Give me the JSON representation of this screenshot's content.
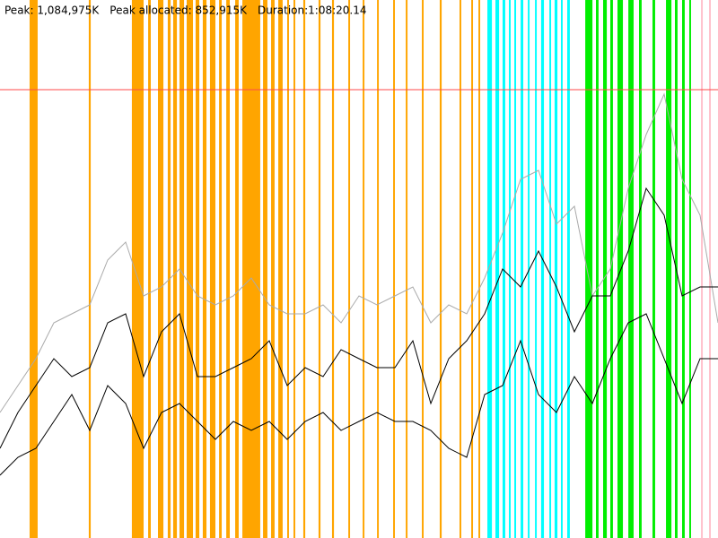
{
  "chart_data": {
    "type": "line",
    "labels": [
      "Peak: 1,084,975K",
      "Peak allocated: 852,915K",
      "Duration:1:08:20.14"
    ],
    "peak_line": {
      "value": 1084975,
      "color": "#ff4a4a"
    },
    "xlim": [
      0,
      4100
    ],
    "ylim": [
      0,
      1301970
    ],
    "x": [
      0,
      102.5,
      205,
      307.5,
      410,
      512.5,
      615,
      717.5,
      820,
      922.5,
      1025,
      1127.5,
      1230,
      1332.5,
      1435,
      1537.5,
      1640,
      1742.5,
      1845,
      1947.5,
      2050,
      2152.5,
      2255,
      2357.5,
      2460,
      2562.5,
      2665,
      2767.5,
      2870,
      2972.5,
      3075,
      3177.5,
      3280,
      3382.5,
      3485,
      3587.5,
      3690,
      3792.5,
      3895,
      3997.5,
      4100
    ],
    "series": [
      {
        "color": "#aaaaaa",
        "values": [
          303800,
          368900,
          434000,
          520800,
          542500,
          564200,
          672700,
          716100,
          585900,
          607600,
          651000,
          585900,
          564200,
          585900,
          629300,
          564200,
          542500,
          542500,
          564200,
          520800,
          585900,
          564200,
          585900,
          607600,
          520800,
          564200,
          542500,
          629300,
          737800,
          868000,
          889700,
          759500,
          802900,
          585900,
          651000,
          846300,
          976500,
          1074150,
          868000,
          781200,
          520800
        ]
      },
      {
        "color": "#000000",
        "values": [
          217000,
          303800,
          368900,
          434000,
          390600,
          412300,
          520800,
          542500,
          390600,
          499100,
          542500,
          390600,
          390600,
          412300,
          434000,
          477400,
          368900,
          412300,
          390600,
          455700,
          434000,
          412300,
          412300,
          477400,
          325500,
          434000,
          477400,
          542500,
          651000,
          607600,
          694400,
          607600,
          499100,
          585900,
          585900,
          694400,
          846300,
          781200,
          585900,
          607600,
          607600
        ]
      },
      {
        "color": "#000000",
        "values": [
          151900,
          195300,
          217000,
          282100,
          347200,
          260400,
          368900,
          325500,
          217000,
          303800,
          325500,
          282100,
          238700,
          282100,
          260400,
          282100,
          238700,
          282100,
          303800,
          260400,
          282100,
          303800,
          282100,
          282100,
          260400,
          217000,
          195300,
          347200,
          368900,
          477400,
          347200,
          303800,
          390600,
          325500,
          434000,
          520800,
          542500,
          434000,
          325500,
          434000,
          434000
        ]
      }
    ],
    "bands": [
      {
        "color": "#ffa500",
        "intervals": [
          [
            169,
            215
          ],
          [
            507,
            518
          ],
          [
            753,
            820
          ],
          [
            846,
            861
          ],
          [
            902,
            933
          ],
          [
            958,
            974
          ],
          [
            989,
            1010
          ],
          [
            1025,
            1051
          ],
          [
            1066,
            1102
          ],
          [
            1117,
            1138
          ],
          [
            1158,
            1179
          ],
          [
            1199,
            1230
          ],
          [
            1251,
            1266
          ],
          [
            1292,
            1312
          ],
          [
            1343,
            1363
          ],
          [
            1384,
            1486
          ],
          [
            1502,
            1527
          ],
          [
            1548,
            1568
          ],
          [
            1589,
            1614
          ],
          [
            1640,
            1650
          ],
          [
            1676,
            1686
          ],
          [
            1732,
            1743
          ],
          [
            1819,
            1830
          ],
          [
            1896,
            1907
          ],
          [
            1989,
            1999
          ],
          [
            2071,
            2081
          ],
          [
            2153,
            2163
          ],
          [
            2245,
            2255
          ],
          [
            2317,
            2327
          ],
          [
            2409,
            2419
          ],
          [
            2511,
            2522
          ],
          [
            2624,
            2634
          ],
          [
            2691,
            2701
          ],
          [
            2732,
            2742
          ]
        ]
      },
      {
        "color": "#00ffff",
        "intervals": [
          [
            2783,
            2809
          ],
          [
            2829,
            2850
          ],
          [
            2870,
            2885
          ],
          [
            2906,
            2916
          ],
          [
            2937,
            2947
          ],
          [
            2973,
            2988
          ],
          [
            3014,
            3024
          ],
          [
            3055,
            3065
          ],
          [
            3090,
            3106
          ],
          [
            3137,
            3147
          ],
          [
            3167,
            3183
          ],
          [
            3203,
            3213
          ],
          [
            3239,
            3254
          ]
        ]
      },
      {
        "color": "#00ee00",
        "intervals": [
          [
            3342,
            3383
          ],
          [
            3403,
            3418
          ],
          [
            3444,
            3465
          ],
          [
            3485,
            3500
          ],
          [
            3526,
            3557
          ],
          [
            3588,
            3618
          ],
          [
            3649,
            3664
          ],
          [
            3726,
            3741
          ],
          [
            3803,
            3834
          ],
          [
            3854,
            3869
          ],
          [
            3895,
            3910
          ],
          [
            3936,
            3946
          ]
        ]
      },
      {
        "color": "#ffc0cb",
        "intervals": [
          [
            4003,
            4013
          ],
          [
            4049,
            4059
          ]
        ]
      }
    ]
  }
}
